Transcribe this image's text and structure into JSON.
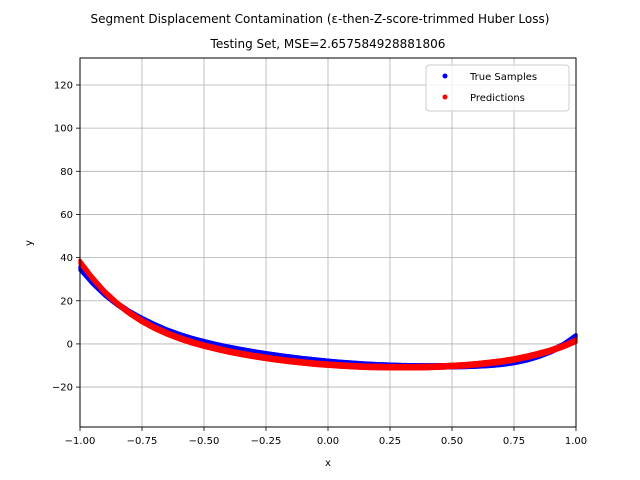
{
  "chart_data": {
    "type": "scatter",
    "title": "Segment Displacement Contamination (ε-then-Z-score-trimmed Huber Loss)",
    "subtitle": "Testing Set, MSE=2.657584928881806",
    "xlabel": "x",
    "ylabel": "y",
    "xlim": [
      -1.0,
      1.0
    ],
    "ylim": [
      -38.5,
      132.5
    ],
    "grid": true,
    "legend_position": "top-right",
    "x_ticks": [
      {
        "value": -1.0,
        "label": "−1.00"
      },
      {
        "value": -0.75,
        "label": "−0.75"
      },
      {
        "value": -0.5,
        "label": "−0.50"
      },
      {
        "value": -0.25,
        "label": "−0.25"
      },
      {
        "value": 0.0,
        "label": "0.00"
      },
      {
        "value": 0.25,
        "label": "0.25"
      },
      {
        "value": 0.5,
        "label": "0.50"
      },
      {
        "value": 0.75,
        "label": "0.75"
      },
      {
        "value": 1.0,
        "label": "1.00"
      }
    ],
    "y_ticks": [
      {
        "value": -20,
        "label": "−20"
      },
      {
        "value": 0,
        "label": "0"
      },
      {
        "value": 20,
        "label": "20"
      },
      {
        "value": 40,
        "label": "40"
      },
      {
        "value": 60,
        "label": "60"
      },
      {
        "value": 80,
        "label": "80"
      },
      {
        "value": 100,
        "label": "100"
      },
      {
        "value": 120,
        "label": "120"
      }
    ],
    "series": [
      {
        "name": "True Samples",
        "color": "#0000ff",
        "x": [
          -1.0,
          -0.95,
          -0.9,
          -0.85,
          -0.8,
          -0.75,
          -0.7,
          -0.65,
          -0.6,
          -0.55,
          -0.5,
          -0.45,
          -0.4,
          -0.35,
          -0.3,
          -0.25,
          -0.2,
          -0.15,
          -0.1,
          -0.05,
          0.0,
          0.05,
          0.1,
          0.15,
          0.2,
          0.25,
          0.3,
          0.35,
          0.4,
          0.45,
          0.5,
          0.55,
          0.6,
          0.65,
          0.7,
          0.75,
          0.8,
          0.85,
          0.9,
          0.95,
          1.0
        ],
        "y": [
          35.0,
          28.5,
          23.0,
          18.5,
          14.7,
          11.5,
          8.7,
          6.2,
          4.1,
          2.3,
          0.8,
          -0.6,
          -1.8,
          -2.9,
          -3.9,
          -4.8,
          -5.6,
          -6.4,
          -7.1,
          -7.7,
          -8.3,
          -8.8,
          -9.2,
          -9.6,
          -9.9,
          -10.1,
          -10.3,
          -10.4,
          -10.4,
          -10.4,
          -10.3,
          -10.2,
          -10.0,
          -9.7,
          -9.2,
          -8.4,
          -7.2,
          -5.5,
          -3.3,
          -0.5,
          3.5
        ]
      },
      {
        "name": "Predictions",
        "color": "#ff0000",
        "x": [
          -1.0,
          -0.95,
          -0.9,
          -0.85,
          -0.8,
          -0.75,
          -0.7,
          -0.65,
          -0.6,
          -0.55,
          -0.5,
          -0.45,
          -0.4,
          -0.35,
          -0.3,
          -0.25,
          -0.2,
          -0.15,
          -0.1,
          -0.05,
          0.0,
          0.05,
          0.1,
          0.15,
          0.2,
          0.25,
          0.3,
          0.35,
          0.4,
          0.45,
          0.5,
          0.55,
          0.6,
          0.65,
          0.7,
          0.75,
          0.8,
          0.85,
          0.9,
          0.95,
          1.0
        ],
        "y": [
          38.0,
          30.5,
          24.0,
          18.7,
          14.3,
          10.6,
          7.5,
          4.9,
          2.7,
          0.8,
          -0.8,
          -2.2,
          -3.5,
          -4.6,
          -5.6,
          -6.5,
          -7.3,
          -8.0,
          -8.6,
          -9.2,
          -9.6,
          -10.0,
          -10.3,
          -10.6,
          -10.7,
          -10.8,
          -10.8,
          -10.8,
          -10.7,
          -10.5,
          -10.2,
          -9.9,
          -9.4,
          -8.8,
          -8.1,
          -7.2,
          -6.0,
          -4.6,
          -3.0,
          -1.0,
          1.5
        ]
      }
    ]
  }
}
